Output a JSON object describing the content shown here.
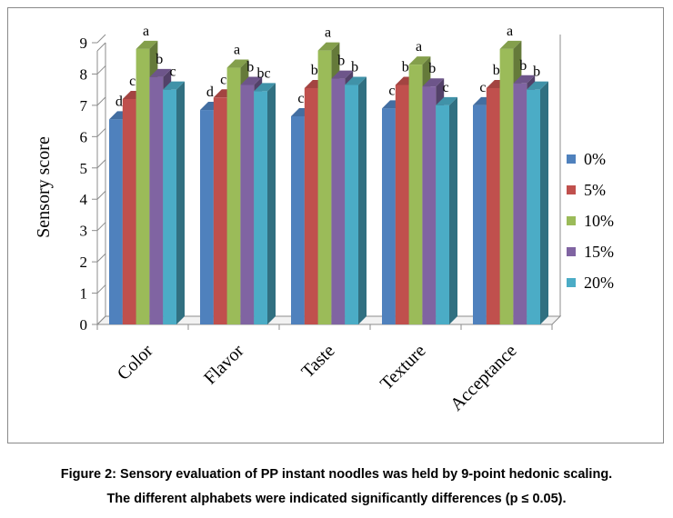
{
  "chart_data": {
    "type": "bar",
    "ylabel": "Sensory score",
    "ylim": [
      0,
      9
    ],
    "yticks": [
      0,
      1,
      2,
      3,
      4,
      5,
      6,
      7,
      8,
      9
    ],
    "grid": false,
    "legend_position": "right",
    "categories": [
      "Color",
      "Flavor",
      "Taste",
      "Texture",
      "Acceptance"
    ],
    "series": [
      {
        "name": "0%",
        "color": "#4F81BD",
        "values": [
          6.55,
          6.85,
          6.65,
          6.9,
          7.0
        ],
        "letters": [
          "d",
          "d",
          "c",
          "c",
          "c"
        ]
      },
      {
        "name": "5%",
        "color": "#C0504D",
        "values": [
          7.2,
          7.25,
          7.55,
          7.65,
          7.55
        ],
        "letters": [
          "c",
          "c",
          "b",
          "b",
          "b"
        ]
      },
      {
        "name": "10%",
        "color": "#9BBB59",
        "values": [
          8.8,
          8.2,
          8.75,
          8.3,
          8.8
        ],
        "letters": [
          "a",
          "a",
          "a",
          "a",
          "a"
        ]
      },
      {
        "name": "15%",
        "color": "#8064A2",
        "values": [
          7.9,
          7.65,
          7.85,
          7.6,
          7.7
        ],
        "letters": [
          "b",
          "b",
          "b",
          "b",
          "b"
        ]
      },
      {
        "name": "20%",
        "color": "#4BACC6",
        "values": [
          7.5,
          7.45,
          7.65,
          7.0,
          7.5
        ],
        "letters": [
          "c",
          "bc",
          "b",
          "c",
          "b"
        ]
      }
    ]
  },
  "caption": {
    "line1": "Figure 2: Sensory evaluation of PP instant noodles was held by 9-point hedonic scaling.",
    "line2": "The different alphabets were indicated significantly differences (p ≤ 0.05)."
  }
}
